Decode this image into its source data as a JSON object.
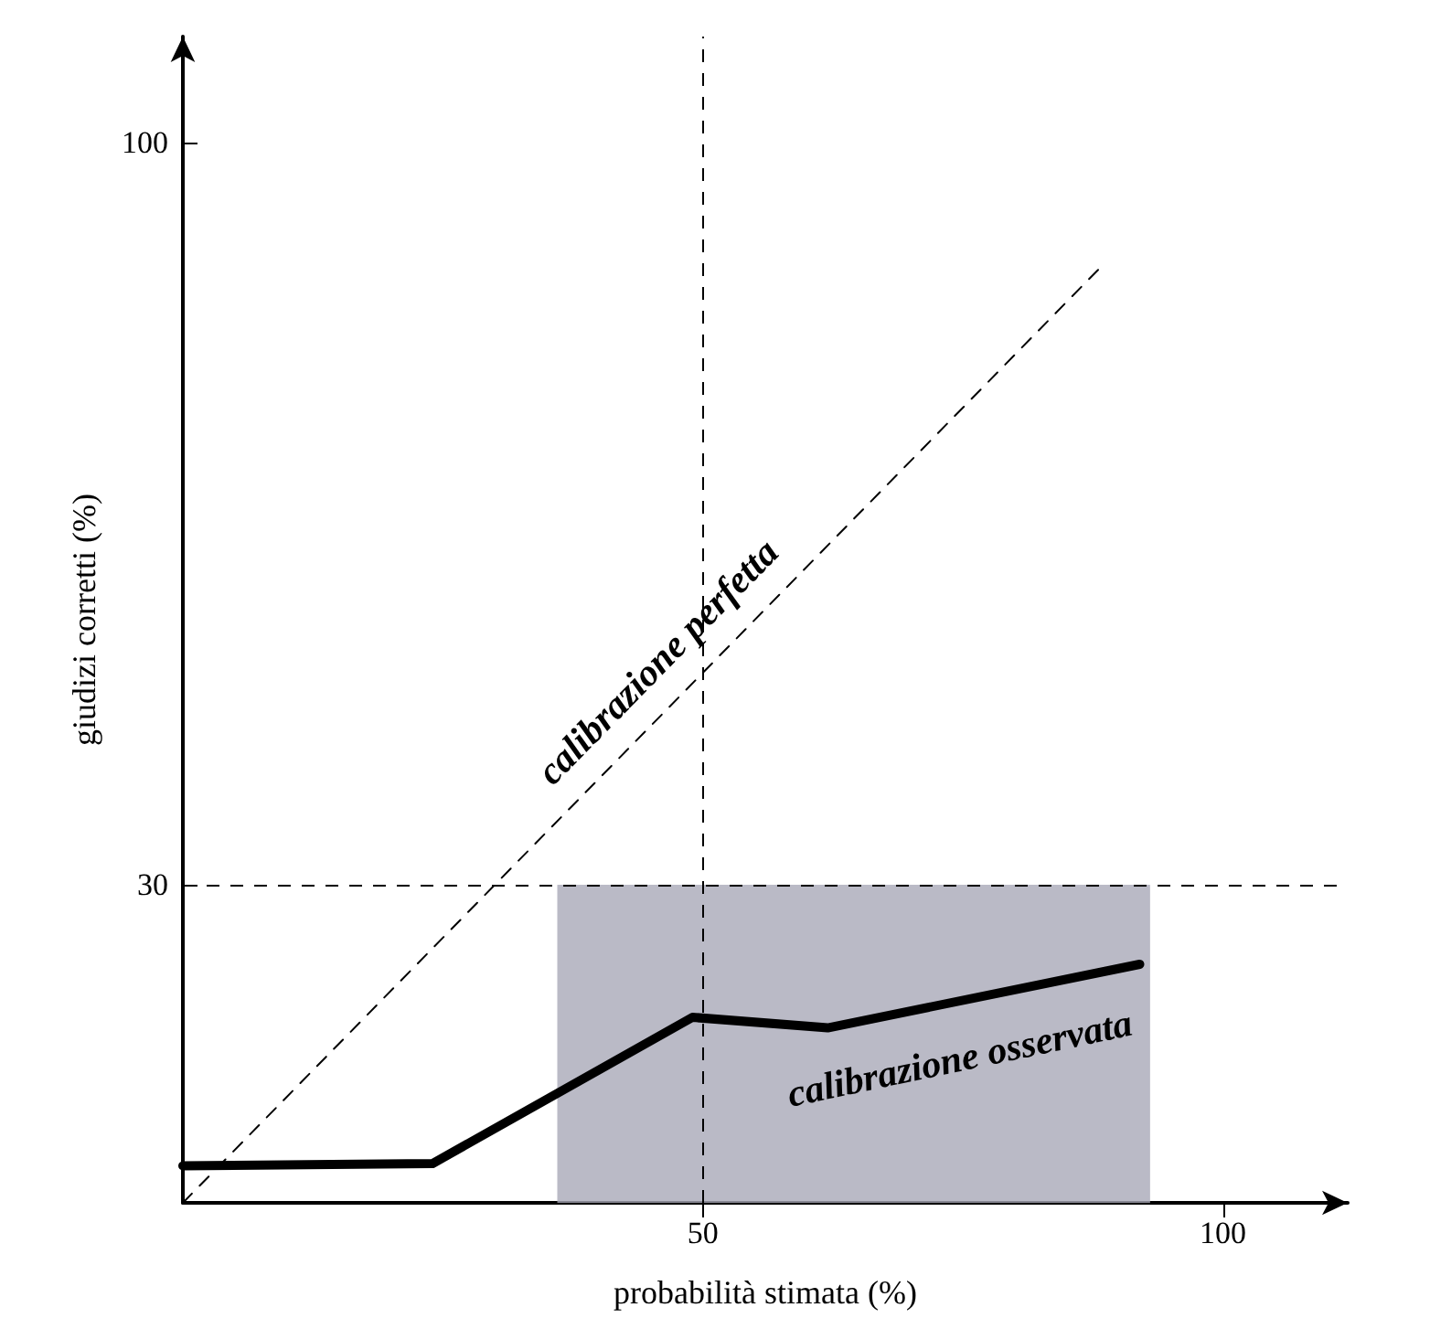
{
  "chart_data": {
    "type": "line",
    "xlabel": "probabilità stimata (%)",
    "ylabel": "giudizi corretti (%)",
    "xlim": [
      0,
      112
    ],
    "ylim": [
      0,
      110
    ],
    "xticks": [
      50,
      100
    ],
    "yticks": [
      30,
      100
    ],
    "grid": false,
    "legend": false,
    "marker": "none",
    "series": [
      {
        "name": "calibrazione perfetta",
        "color": "#000000",
        "line_style": "dashed",
        "x": [
          0,
          88
        ],
        "values": [
          0,
          88
        ]
      },
      {
        "name": "calibrazione osservata",
        "color": "#000000",
        "line_style": "solid",
        "x": [
          0,
          24,
          49,
          62,
          92
        ],
        "values": [
          3.5,
          3.7,
          17.5,
          16.5,
          22.5
        ]
      }
    ],
    "ref_lines": [
      {
        "axis": "y",
        "value": 30,
        "color": "#000000",
        "line_style": "dashed"
      },
      {
        "axis": "x",
        "value": 50,
        "color": "#000000",
        "line_style": "dashed"
      }
    ],
    "bands": [
      {
        "axis": "x",
        "from": 36,
        "to": 93,
        "color": "#a9a9b8"
      }
    ]
  }
}
